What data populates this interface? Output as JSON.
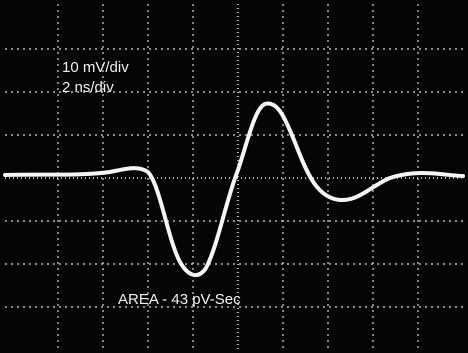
{
  "labels": {
    "vertical_scale": "10 mV/div",
    "horizontal_scale": "2 ns/div",
    "area": "AREA - 43 pV-Sec"
  }
}
